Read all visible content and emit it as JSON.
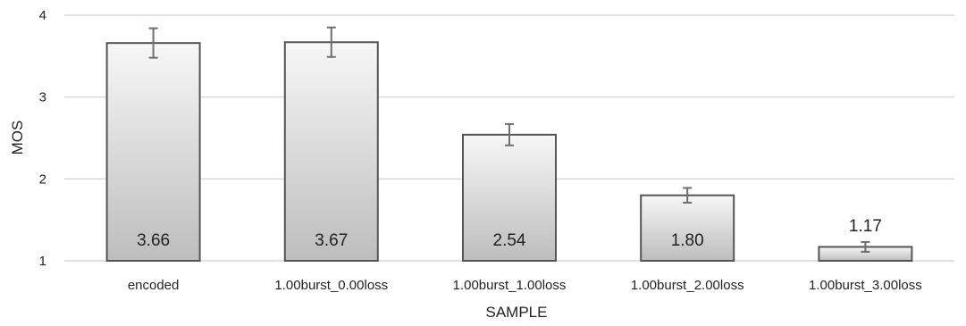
{
  "chart_data": {
    "type": "bar",
    "categories": [
      "encoded",
      "1.00burst_0.00loss",
      "1.00burst_1.00loss",
      "1.00burst_2.00loss",
      "1.00burst_3.00loss"
    ],
    "values": [
      3.66,
      3.67,
      2.54,
      1.8,
      1.17
    ],
    "data_labels": [
      "3.66",
      "3.67",
      "2.54",
      "1.80",
      "1.17"
    ],
    "error_bars": [
      0.18,
      0.18,
      0.13,
      0.09,
      0.06
    ],
    "xlabel": "SAMPLE",
    "ylabel": "MOS",
    "ylim": [
      1,
      4
    ],
    "yticks": [
      "1",
      "2",
      "3",
      "4"
    ],
    "grid": true,
    "bar_fill_top": "#f7f7f7",
    "bar_fill_bottom": "#bdbdbd",
    "bar_stroke": "#555555",
    "error_bar_color": "#6e6e6e",
    "grid_color": "#d9d9d9"
  }
}
